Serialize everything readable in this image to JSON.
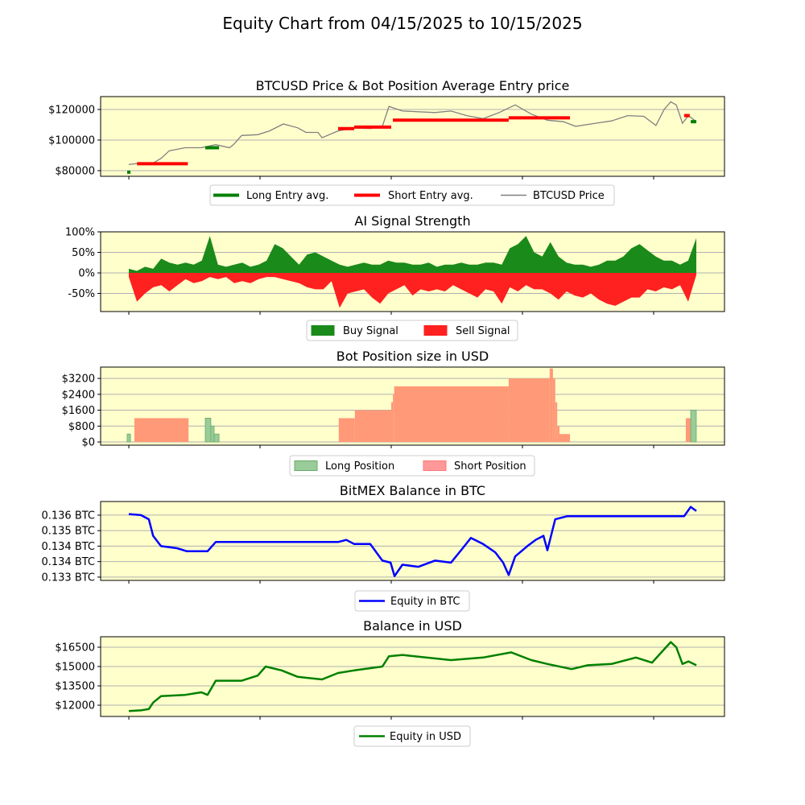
{
  "title": "Equity Chart from 04/15/2025 to 10/15/2025",
  "colors": {
    "panel_bg": "#ffffcc",
    "grid": "#b0b0b0",
    "long": "#008000",
    "short": "#ff0000",
    "price": "#808080",
    "buy": "#1a8a1a",
    "sell": "#ff2020",
    "long_pos": "#99cc99",
    "short_pos": "#ff9977",
    "btc": "#0000ff",
    "usd": "#008000"
  },
  "chart_data": [
    {
      "type": "line",
      "title": "BTCUSD Price & Bot Position Average Entry price",
      "xlabel": "",
      "ylabel": "",
      "x_unit": "days since 04/15/2025",
      "xlim": [
        -8.6,
        181.6
      ],
      "ylim": [
        76300,
        128400
      ],
      "yticks": [
        {
          "value": 80000,
          "label": "$80000"
        },
        {
          "value": 100000,
          "label": "$100000"
        },
        {
          "value": 120000,
          "label": "$120000"
        }
      ],
      "legend": [
        "Long Entry avg.",
        "Short Entry avg.",
        "BTCUSD Price"
      ],
      "legend_position": "bottom-center",
      "grid": true,
      "price": [
        [
          0,
          84000
        ],
        [
          3.7,
          85000
        ],
        [
          7.4,
          85000
        ],
        [
          9.8,
          88000
        ],
        [
          12.3,
          93000
        ],
        [
          17.2,
          95000
        ],
        [
          22.1,
          95000
        ],
        [
          26.5,
          97000
        ],
        [
          30.7,
          95000
        ],
        [
          31.9,
          97000
        ],
        [
          34.4,
          103000
        ],
        [
          39.3,
          103500
        ],
        [
          42.9,
          106000
        ],
        [
          47.1,
          110500
        ],
        [
          51.5,
          108000
        ],
        [
          54,
          105000
        ],
        [
          57.7,
          105000
        ],
        [
          58.9,
          101500
        ],
        [
          63.8,
          106000
        ],
        [
          68.7,
          108000
        ],
        [
          73.6,
          107500
        ],
        [
          77.3,
          109000
        ],
        [
          79.3,
          122000
        ],
        [
          83.4,
          119000
        ],
        [
          93.3,
          118000
        ],
        [
          98.2,
          119000
        ],
        [
          103,
          116000
        ],
        [
          108,
          114000
        ],
        [
          112.9,
          118000
        ],
        [
          117.8,
          123000
        ],
        [
          122.7,
          117000
        ],
        [
          127.6,
          113000
        ],
        [
          132.5,
          112000
        ],
        [
          136.2,
          109000
        ],
        [
          142.3,
          111000
        ],
        [
          147.2,
          112500
        ],
        [
          152.1,
          116000
        ],
        [
          157,
          115500
        ],
        [
          160.7,
          109500
        ],
        [
          163.2,
          120000
        ],
        [
          165.2,
          125000
        ],
        [
          166.9,
          123000
        ],
        [
          168.8,
          111000
        ],
        [
          170.6,
          116000
        ],
        [
          173,
          112000
        ]
      ],
      "long_entry": [
        [
          -0.5,
          0.5,
          79000
        ],
        [
          23.3,
          27.5,
          95000
        ],
        [
          171.3,
          173,
          112000
        ]
      ],
      "short_entry": [
        [
          2.5,
          18,
          84500
        ],
        [
          63.8,
          68.7,
          107500
        ],
        [
          68.7,
          80,
          108500
        ],
        [
          80.5,
          115.8,
          113000
        ],
        [
          115.8,
          134.5,
          114500
        ],
        [
          169.3,
          171,
          116000
        ]
      ]
    },
    {
      "type": "area",
      "title": "AI Signal Strength",
      "xlim": [
        -8.6,
        181.6
      ],
      "ylim": [
        -94,
        100
      ],
      "yticks": [
        {
          "value": -50,
          "label": "-50%"
        },
        {
          "value": 0,
          "label": "0%"
        },
        {
          "value": 50,
          "label": "50%"
        },
        {
          "value": 100,
          "label": "100%"
        }
      ],
      "legend": [
        "Buy Signal",
        "Sell Signal"
      ],
      "legend_position": "bottom-center",
      "grid": true,
      "x_range": [
        0,
        173
      ],
      "buy": [
        10,
        5,
        15,
        10,
        35,
        25,
        20,
        25,
        20,
        30,
        90,
        20,
        15,
        20,
        25,
        15,
        20,
        30,
        70,
        60,
        40,
        20,
        45,
        50,
        40,
        30,
        20,
        15,
        20,
        25,
        20,
        20,
        30,
        25,
        25,
        20,
        20,
        25,
        15,
        20,
        20,
        25,
        20,
        20,
        25,
        25,
        20,
        60,
        70,
        90,
        50,
        40,
        75,
        40,
        25,
        20,
        20,
        15,
        20,
        30,
        30,
        40,
        60,
        70,
        55,
        40,
        30,
        30,
        20,
        30,
        85
      ],
      "sell": [
        -10,
        -70,
        -50,
        -35,
        -30,
        -45,
        -30,
        -15,
        -25,
        -20,
        -10,
        -15,
        -10,
        -25,
        -20,
        -25,
        -15,
        -10,
        -10,
        -15,
        -20,
        -25,
        -35,
        -40,
        -40,
        -20,
        -85,
        -50,
        -45,
        -40,
        -60,
        -75,
        -50,
        -40,
        -30,
        -55,
        -40,
        -45,
        -40,
        -45,
        -30,
        -40,
        -50,
        -60,
        -40,
        -45,
        -75,
        -35,
        -45,
        -30,
        -40,
        -40,
        -50,
        -65,
        -45,
        -55,
        -60,
        -50,
        -65,
        -75,
        -80,
        -70,
        -60,
        -60,
        -40,
        -45,
        -35,
        -40,
        -30,
        -70,
        -5
      ]
    },
    {
      "type": "area",
      "title": "Bot Position size in USD",
      "xlim": [
        -8.6,
        181.6
      ],
      "ylim": [
        -160,
        3770
      ],
      "yticks": [
        {
          "value": 0,
          "label": "$0"
        },
        {
          "value": 800,
          "label": "$800"
        },
        {
          "value": 1600,
          "label": "$1600"
        },
        {
          "value": 2400,
          "label": "$2400"
        },
        {
          "value": 3200,
          "label": "$3200"
        }
      ],
      "legend": [
        "Long Position",
        "Short Position"
      ],
      "legend_position": "bottom-center",
      "grid": true,
      "long": [
        [
          -0.5,
          0.5,
          400
        ],
        [
          23.3,
          25,
          1200
        ],
        [
          25,
          26,
          800
        ],
        [
          26,
          27.5,
          400
        ],
        [
          171.3,
          173,
          1600
        ]
      ],
      "short": [
        [
          1.7,
          18.2,
          1200
        ],
        [
          64,
          68.9,
          1200
        ],
        [
          68.9,
          80,
          1600
        ],
        [
          80,
          80.5,
          2000
        ],
        [
          80.5,
          80.9,
          2400
        ],
        [
          80.9,
          115.8,
          2800
        ],
        [
          115.8,
          128.3,
          3200
        ],
        [
          128.3,
          129.3,
          3700
        ],
        [
          129.3,
          130,
          3200
        ],
        [
          130,
          130.6,
          2000
        ],
        [
          130.6,
          131.3,
          800
        ],
        [
          131.3,
          134.5,
          400
        ],
        [
          169.8,
          171.3,
          1200
        ]
      ]
    },
    {
      "type": "line",
      "title": "BitMEX Balance in BTC",
      "xlim": [
        -8.6,
        181.6
      ],
      "ylim": [
        0.13284,
        0.13666
      ],
      "yticks": [
        {
          "value": 0.133,
          "label": "0.133 BTC"
        },
        {
          "value": 0.13375,
          "label": "0.134 BTC"
        },
        {
          "value": 0.1345,
          "label": "0.134 BTC"
        },
        {
          "value": 0.13525,
          "label": "0.135 BTC"
        },
        {
          "value": 0.136,
          "label": "0.136 BTC"
        }
      ],
      "legend": [
        "Equity in BTC"
      ],
      "legend_position": "bottom-center",
      "grid": true,
      "points": [
        [
          0,
          0.13605
        ],
        [
          3.7,
          0.136
        ],
        [
          6.1,
          0.1358
        ],
        [
          7.4,
          0.135
        ],
        [
          9.8,
          0.1345
        ],
        [
          14.7,
          0.1344
        ],
        [
          17.7,
          0.13425
        ],
        [
          24,
          0.13425
        ],
        [
          26.5,
          0.1347
        ],
        [
          63.8,
          0.1347
        ],
        [
          66.3,
          0.1348
        ],
        [
          68.7,
          0.1346
        ],
        [
          73.6,
          0.1346
        ],
        [
          77.3,
          0.1338
        ],
        [
          79.8,
          0.1337
        ],
        [
          81,
          0.13305
        ],
        [
          83.4,
          0.1336
        ],
        [
          88.3,
          0.1335
        ],
        [
          93.3,
          0.1338
        ],
        [
          98.2,
          0.1337
        ],
        [
          101.8,
          0.1344
        ],
        [
          104.3,
          0.1349
        ],
        [
          108,
          0.1346
        ],
        [
          111.7,
          0.1342
        ],
        [
          114.1,
          0.1337
        ],
        [
          115.8,
          0.1331
        ],
        [
          117.8,
          0.134
        ],
        [
          121.5,
          0.1345
        ],
        [
          124,
          0.1348
        ],
        [
          126.4,
          0.135
        ],
        [
          127.6,
          0.1343
        ],
        [
          130,
          0.1358
        ],
        [
          133.7,
          0.13595
        ],
        [
          169.3,
          0.13595
        ],
        [
          171.3,
          0.1364
        ],
        [
          173,
          0.1362
        ]
      ]
    },
    {
      "type": "line",
      "title": "Balance in USD",
      "xlim": [
        -8.6,
        181.6
      ],
      "ylim": [
        11125,
        17310
      ],
      "yticks": [
        {
          "value": 12000,
          "label": "$12000"
        },
        {
          "value": 13500,
          "label": "$13500"
        },
        {
          "value": 15000,
          "label": "$15000"
        },
        {
          "value": 16500,
          "label": "$16500"
        }
      ],
      "legend": [
        "Equity in USD"
      ],
      "legend_position": "bottom-center",
      "grid": true,
      "points": [
        [
          0,
          11550
        ],
        [
          3.7,
          11600
        ],
        [
          6.1,
          11700
        ],
        [
          7.4,
          12200
        ],
        [
          9.8,
          12700
        ],
        [
          17.2,
          12800
        ],
        [
          22.1,
          13000
        ],
        [
          24,
          12800
        ],
        [
          26.5,
          13900
        ],
        [
          34.4,
          13900
        ],
        [
          39.3,
          14300
        ],
        [
          41.7,
          15000
        ],
        [
          46.6,
          14700
        ],
        [
          51.5,
          14200
        ],
        [
          58.9,
          14000
        ],
        [
          63.8,
          14500
        ],
        [
          68.7,
          14700
        ],
        [
          77.3,
          15000
        ],
        [
          79.3,
          15800
        ],
        [
          83.4,
          15900
        ],
        [
          98.2,
          15500
        ],
        [
          108,
          15700
        ],
        [
          116.6,
          16100
        ],
        [
          122.7,
          15500
        ],
        [
          127.6,
          15200
        ],
        [
          135,
          14800
        ],
        [
          139.9,
          15100
        ],
        [
          147.2,
          15200
        ],
        [
          154.6,
          15700
        ],
        [
          159.5,
          15300
        ],
        [
          162,
          16000
        ],
        [
          165.2,
          16900
        ],
        [
          166.9,
          16500
        ],
        [
          168.8,
          15200
        ],
        [
          170.6,
          15400
        ],
        [
          173,
          15100
        ]
      ]
    }
  ]
}
